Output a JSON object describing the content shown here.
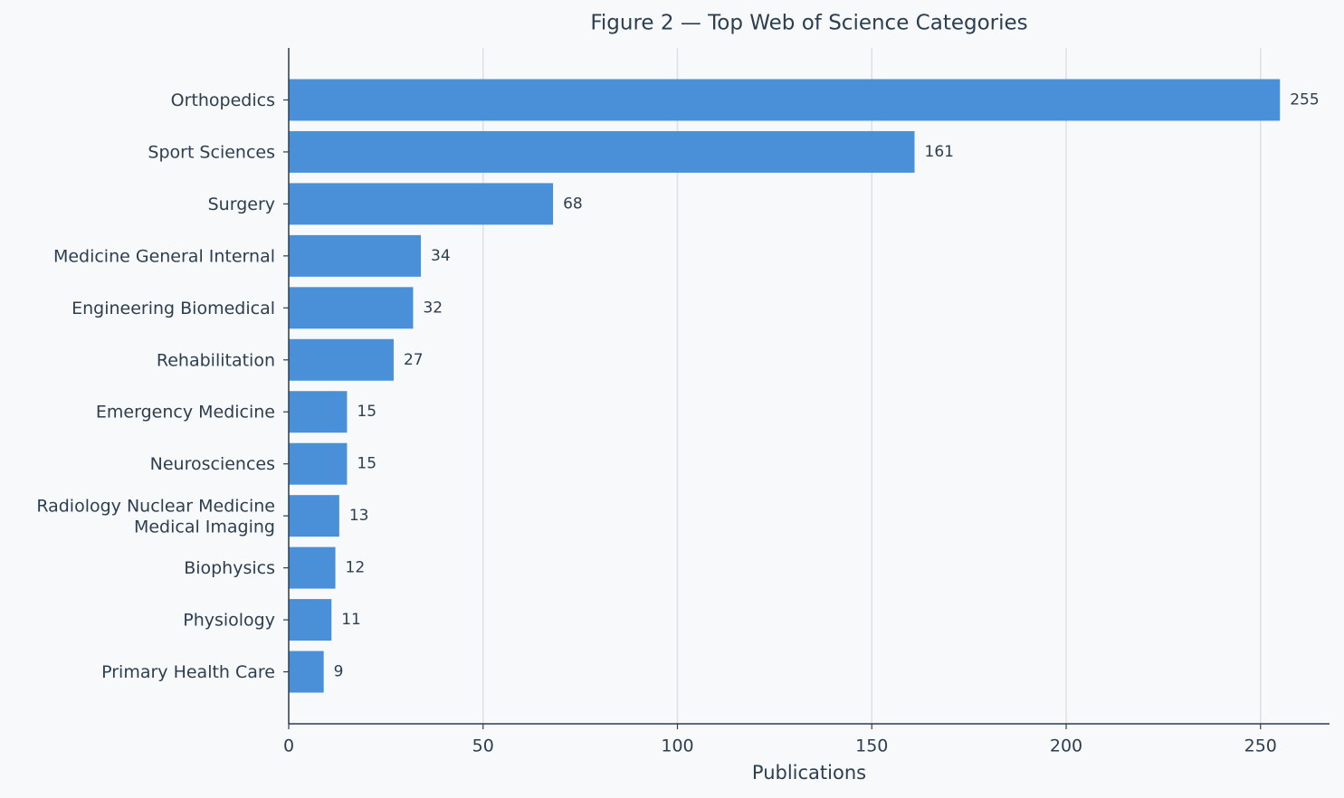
{
  "chart_data": {
    "type": "bar",
    "orientation": "horizontal",
    "title": "Figure 2 — Top Web of Science Categories",
    "x_label": "Publications",
    "categories": [
      "Orthopedics",
      "Sport Sciences",
      "Surgery",
      "Medicine General Internal",
      "Engineering Biomedical",
      "Rehabilitation",
      "Emergency Medicine",
      "Neurosciences",
      "Radiology Nuclear Medicine\nMedical Imaging",
      "Biophysics",
      "Physiology",
      "Primary Health Care"
    ],
    "values": [
      255,
      161,
      68,
      34,
      32,
      27,
      15,
      15,
      13,
      12,
      11,
      9
    ],
    "color": "#4a90d9",
    "xlim": [
      0,
      267.75
    ],
    "xticks": [
      0,
      50,
      100,
      150,
      200,
      250
    ],
    "grid": true
  }
}
